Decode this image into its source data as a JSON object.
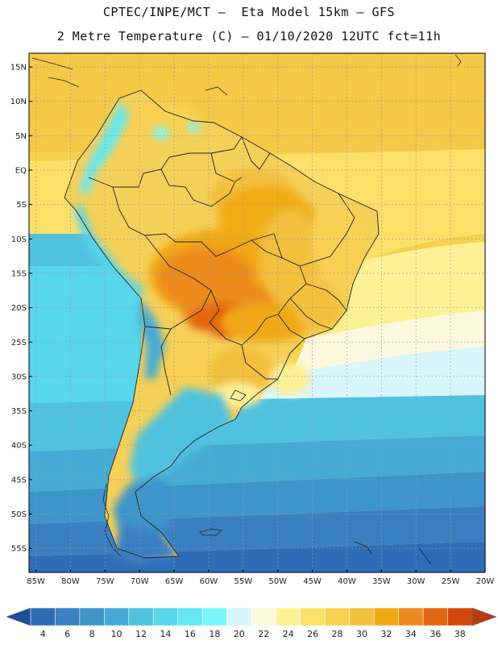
{
  "header": {
    "line1": "CPTEC/INPE/MCT –  Eta Model 15km – GFS",
    "line2": "2 Metre Temperature (C) – 01/10/2020 12UTC fct=11h"
  },
  "map": {
    "lat_labels": [
      {
        "value": 15,
        "label": "15N"
      },
      {
        "value": 10,
        "label": "10N"
      },
      {
        "value": 5,
        "label": "5N"
      },
      {
        "value": 0,
        "label": "EQ"
      },
      {
        "value": -5,
        "label": "5S"
      },
      {
        "value": -10,
        "label": "10S"
      },
      {
        "value": -15,
        "label": "15S"
      },
      {
        "value": -20,
        "label": "20S"
      },
      {
        "value": -25,
        "label": "25S"
      },
      {
        "value": -30,
        "label": "30S"
      },
      {
        "value": -35,
        "label": "35S"
      },
      {
        "value": -40,
        "label": "40S"
      },
      {
        "value": -45,
        "label": "45S"
      },
      {
        "value": -50,
        "label": "50S"
      },
      {
        "value": -55,
        "label": "55S"
      }
    ],
    "lon_labels": [
      {
        "value": -85,
        "label": "85W"
      },
      {
        "value": -80,
        "label": "80W"
      },
      {
        "value": -75,
        "label": "75W"
      },
      {
        "value": -70,
        "label": "70W"
      },
      {
        "value": -65,
        "label": "65W"
      },
      {
        "value": -60,
        "label": "60W"
      },
      {
        "value": -55,
        "label": "55W"
      },
      {
        "value": -50,
        "label": "50W"
      },
      {
        "value": -45,
        "label": "45W"
      },
      {
        "value": -40,
        "label": "40W"
      },
      {
        "value": -35,
        "label": "35W"
      },
      {
        "value": -30,
        "label": "30W"
      },
      {
        "value": -25,
        "label": "25W"
      },
      {
        "value": -20,
        "label": "20W"
      }
    ],
    "lat_range": [
      17,
      -58.5
    ],
    "lon_range": [
      -86,
      -20
    ]
  },
  "colorbar": {
    "labels": [
      "4",
      "6",
      "8",
      "10",
      "12",
      "14",
      "16",
      "18",
      "20",
      "22",
      "24",
      "26",
      "28",
      "30",
      "32",
      "34",
      "36",
      "38"
    ],
    "colors": [
      "#2e6cb8",
      "#3a7fc2",
      "#3d95cc",
      "#45abd6",
      "#4fc2e0",
      "#58d6ea",
      "#64e8f4",
      "#7af6fb",
      "#d8f6fb",
      "#fcf8de",
      "#fdf196",
      "#fbe06a",
      "#f8d052",
      "#f3c03e",
      "#f1a812",
      "#ec8a1e",
      "#e36610",
      "#cf4a0a"
    ],
    "under_color": "#1f4f9a",
    "over_color": "#b53d14"
  }
}
